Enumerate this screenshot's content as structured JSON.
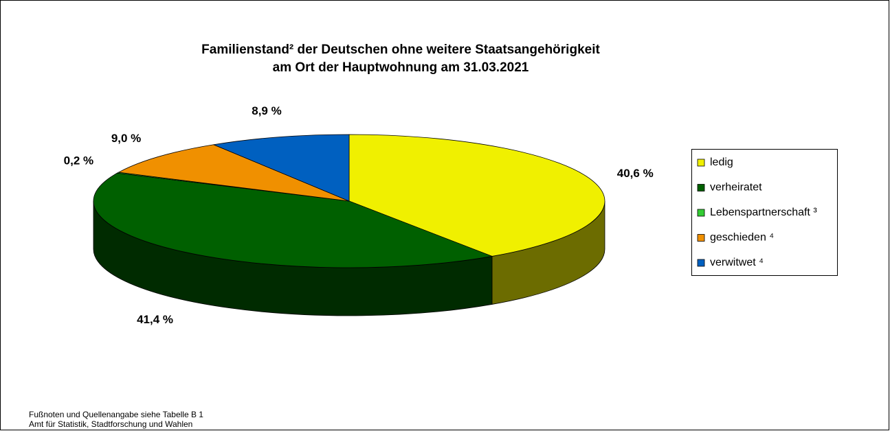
{
  "chart_data": {
    "type": "pie3d",
    "title": [
      "Familienstand² der Deutschen ohne weitere Staatsangehörigkeit",
      "am Ort der Hauptwohnung am 31.03.2021"
    ],
    "categories": [
      "ledig",
      "verheiratet",
      "Lebenspartnerschaft ³",
      "geschieden ⁴",
      "verwitwet ⁴"
    ],
    "values": [
      40.6,
      41.4,
      0.2,
      9.0,
      8.9
    ],
    "value_labels": [
      "40,6 %",
      "41,4 %",
      "0,2 %",
      "9,0 %",
      "8,9 %"
    ],
    "colors": [
      "#f0f000",
      "#006000",
      "#33cc33",
      "#f09000",
      "#0060c0"
    ],
    "legend": "right",
    "footnotes": [
      "Fußnoten und Quellenangabe siehe Tabelle B 1",
      "Amt für Statistik, Stadtforschung und Wahlen"
    ]
  }
}
